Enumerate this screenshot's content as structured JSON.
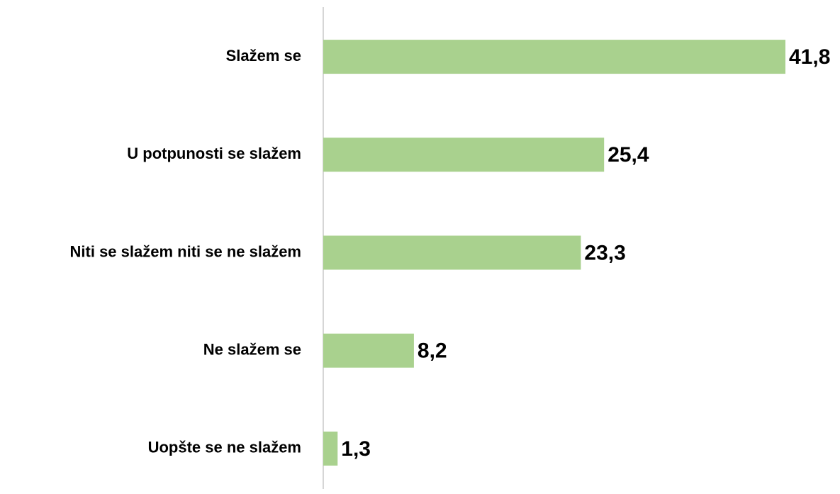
{
  "chart_data": {
    "type": "bar",
    "orientation": "horizontal",
    "categories": [
      "Slažem se",
      "U potpunosti se slažem",
      "Niti se slažem niti se ne slažem",
      "Ne slažem se",
      "Uopšte se ne slažem"
    ],
    "values": [
      41.8,
      25.4,
      23.3,
      8.2,
      1.3
    ],
    "value_labels": [
      "41,8",
      "25,4",
      "23,3",
      "8,2",
      "1,3"
    ],
    "color": "#a9d18e"
  }
}
